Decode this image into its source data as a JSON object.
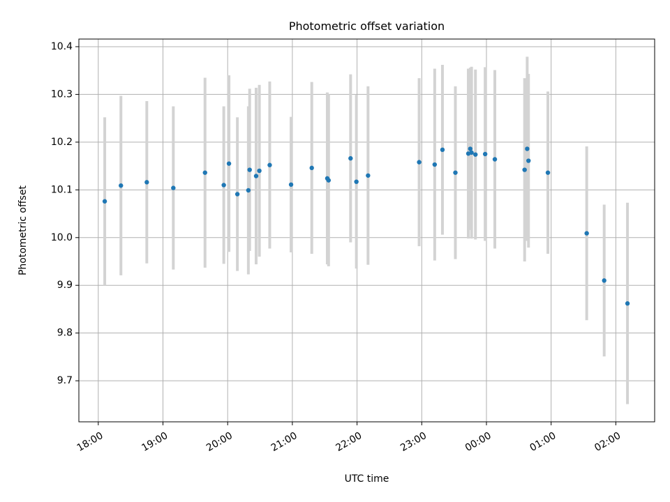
{
  "chart_data": {
    "type": "scatter",
    "title": "Photometric offset variation",
    "xlabel": "UTC time",
    "ylabel": "Photometric offset",
    "x_tick_labels": [
      "18:00",
      "19:00",
      "20:00",
      "21:00",
      "22:00",
      "23:00",
      "00:00",
      "01:00",
      "02:00"
    ],
    "x_tick_hours": [
      0,
      1,
      2,
      3,
      4,
      5,
      6,
      7,
      8
    ],
    "x_axis_start": "18:00",
    "x_range_hours": [
      -0.3,
      8.6
    ],
    "y_ticks": [
      9.7,
      9.8,
      9.9,
      10.0,
      10.1,
      10.2,
      10.3,
      10.4
    ],
    "y_tick_labels": [
      "9.7",
      "9.8",
      "9.9",
      "10.0",
      "10.1",
      "10.2",
      "10.3",
      "10.4"
    ],
    "ylim": [
      9.614,
      10.416
    ],
    "grid": true,
    "colors": {
      "point": "#1f77b4",
      "errorbar": "#d3d3d3",
      "grid": "#b0b0b0"
    },
    "points": [
      {
        "x": 0.1,
        "y": 10.076,
        "err": 0.176
      },
      {
        "x": 0.35,
        "y": 10.109,
        "err": 0.188
      },
      {
        "x": 0.75,
        "y": 10.116,
        "err": 0.17
      },
      {
        "x": 1.16,
        "y": 10.104,
        "err": 0.171
      },
      {
        "x": 1.65,
        "y": 10.136,
        "err": 0.199
      },
      {
        "x": 1.94,
        "y": 10.11,
        "err": 0.165
      },
      {
        "x": 2.02,
        "y": 10.155,
        "err": 0.185
      },
      {
        "x": 2.15,
        "y": 10.091,
        "err": 0.161
      },
      {
        "x": 2.32,
        "y": 10.099,
        "err": 0.176
      },
      {
        "x": 2.34,
        "y": 10.142,
        "err": 0.17
      },
      {
        "x": 2.44,
        "y": 10.129,
        "err": 0.185
      },
      {
        "x": 2.49,
        "y": 10.14,
        "err": 0.18
      },
      {
        "x": 2.65,
        "y": 10.152,
        "err": 0.175
      },
      {
        "x": 2.98,
        "y": 10.111,
        "err": 0.142
      },
      {
        "x": 3.3,
        "y": 10.146,
        "err": 0.18
      },
      {
        "x": 3.54,
        "y": 10.124,
        "err": 0.18
      },
      {
        "x": 3.56,
        "y": 10.12,
        "err": 0.18
      },
      {
        "x": 3.9,
        "y": 10.166,
        "err": 0.176
      },
      {
        "x": 3.99,
        "y": 10.117,
        "err": 0.182
      },
      {
        "x": 4.17,
        "y": 10.13,
        "err": 0.187
      },
      {
        "x": 4.96,
        "y": 10.158,
        "err": 0.176
      },
      {
        "x": 5.2,
        "y": 10.153,
        "err": 0.201
      },
      {
        "x": 5.32,
        "y": 10.184,
        "err": 0.178
      },
      {
        "x": 5.52,
        "y": 10.136,
        "err": 0.181
      },
      {
        "x": 5.72,
        "y": 10.176,
        "err": 0.178
      },
      {
        "x": 5.75,
        "y": 10.186,
        "err": 0.17
      },
      {
        "x": 5.77,
        "y": 10.178,
        "err": 0.18
      },
      {
        "x": 5.83,
        "y": 10.174,
        "err": 0.178
      },
      {
        "x": 5.98,
        "y": 10.175,
        "err": 0.182
      },
      {
        "x": 6.13,
        "y": 10.164,
        "err": 0.187
      },
      {
        "x": 6.59,
        "y": 10.142,
        "err": 0.192
      },
      {
        "x": 6.63,
        "y": 10.186,
        "err": 0.193
      },
      {
        "x": 6.65,
        "y": 10.161,
        "err": 0.182
      },
      {
        "x": 6.95,
        "y": 10.136,
        "err": 0.17
      },
      {
        "x": 7.55,
        "y": 10.009,
        "err": 0.182
      },
      {
        "x": 7.82,
        "y": 9.91,
        "err": 0.159
      },
      {
        "x": 8.18,
        "y": 9.862,
        "err": 0.211
      }
    ]
  }
}
